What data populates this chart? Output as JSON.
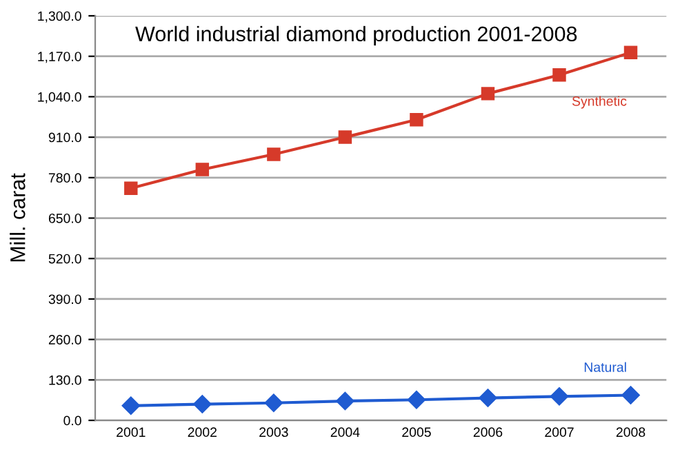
{
  "chart_data": {
    "type": "line",
    "title": "World industrial diamond production 2001-2008",
    "ylabel": "Mill. carat",
    "categories": [
      "2001",
      "2002",
      "2003",
      "2004",
      "2005",
      "2006",
      "2007",
      "2008"
    ],
    "series": [
      {
        "name": "Synthetic",
        "color": "#d63a2a",
        "marker": "square",
        "values": [
          746,
          806,
          855,
          910,
          966,
          1050,
          1110,
          1182
        ]
      },
      {
        "name": "Natural",
        "color": "#1f5bd1",
        "marker": "diamond",
        "values": [
          47,
          52,
          56,
          62,
          66,
          72,
          77,
          81
        ]
      }
    ],
    "ylim": [
      0,
      1300
    ],
    "yticks": [
      {
        "value": 0,
        "label": "0.0"
      },
      {
        "value": 130,
        "label": "130.0"
      },
      {
        "value": 260,
        "label": "260.0"
      },
      {
        "value": 390,
        "label": "390.0"
      },
      {
        "value": 520,
        "label": "520.0"
      },
      {
        "value": 650,
        "label": "650.0"
      },
      {
        "value": 780,
        "label": "780.0"
      },
      {
        "value": 910,
        "label": "910.0"
      },
      {
        "value": 1040,
        "label": "1,040.0"
      },
      {
        "value": 1170,
        "label": "1,170.0"
      },
      {
        "value": 1300,
        "label": "1,300.0"
      }
    ],
    "grid": "y",
    "legend": false,
    "line_style": "solid"
  }
}
